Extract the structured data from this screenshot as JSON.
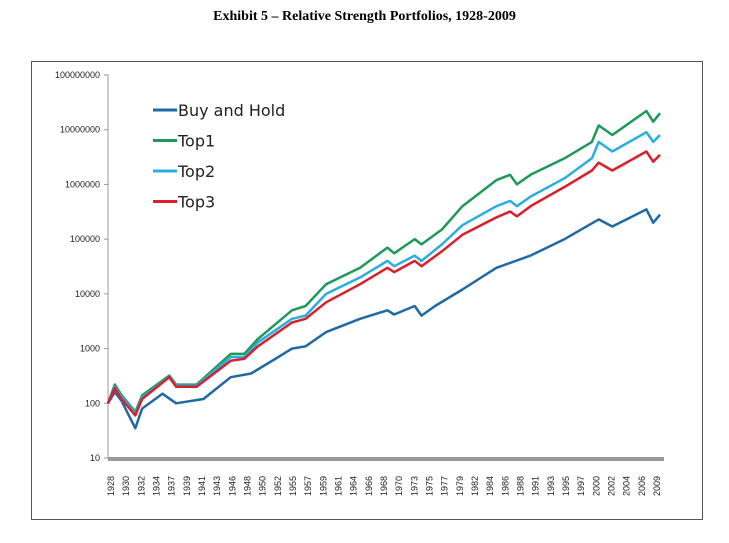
{
  "title": "Exhibit 5 – Relative Strength Portfolios, 1928-2009",
  "chart_data": {
    "type": "line",
    "title": "",
    "xlabel": "",
    "ylabel": "",
    "yscale": "log",
    "ylim": [
      10,
      100000000
    ],
    "y_ticks": [
      "10",
      "100",
      "1000",
      "10000",
      "100000",
      "1000000",
      "10000000",
      "100000000"
    ],
    "xlim": [
      1928,
      2009
    ],
    "x_ticks": [
      "1928",
      "1930",
      "1932",
      "1934",
      "1937",
      "1939",
      "1941",
      "1943",
      "1946",
      "1948",
      "1950",
      "1952",
      "1955",
      "1957",
      "1959",
      "1961",
      "1964",
      "1966",
      "1968",
      "1970",
      "1973",
      "1975",
      "1977",
      "1979",
      "1982",
      "1984",
      "1986",
      "1988",
      "1991",
      "1993",
      "1995",
      "1997",
      "2000",
      "2002",
      "2004",
      "2006",
      "2009"
    ],
    "grid": false,
    "legend": "top-left",
    "series": [
      {
        "name": "Buy and Hold",
        "color": "#1f6aa5",
        "points": [
          [
            1928,
            100
          ],
          [
            1929,
            160
          ],
          [
            1930,
            110
          ],
          [
            1932,
            35
          ],
          [
            1933,
            80
          ],
          [
            1936,
            150
          ],
          [
            1938,
            100
          ],
          [
            1942,
            120
          ],
          [
            1946,
            300
          ],
          [
            1949,
            350
          ],
          [
            1953,
            700
          ],
          [
            1955,
            1000
          ],
          [
            1957,
            1100
          ],
          [
            1960,
            2000
          ],
          [
            1965,
            3500
          ],
          [
            1969,
            5000
          ],
          [
            1970,
            4200
          ],
          [
            1973,
            6000
          ],
          [
            1974,
            4000
          ],
          [
            1976,
            6000
          ],
          [
            1980,
            12000
          ],
          [
            1985,
            30000
          ],
          [
            1990,
            50000
          ],
          [
            1995,
            100000
          ],
          [
            2000,
            230000
          ],
          [
            2002,
            170000
          ],
          [
            2007,
            350000
          ],
          [
            2008,
            200000
          ],
          [
            2009,
            280000
          ]
        ]
      },
      {
        "name": "Top1",
        "color": "#1e9a58",
        "points": [
          [
            1928,
            100
          ],
          [
            1929,
            220
          ],
          [
            1930,
            140
          ],
          [
            1932,
            70
          ],
          [
            1933,
            140
          ],
          [
            1937,
            320
          ],
          [
            1938,
            220
          ],
          [
            1941,
            220
          ],
          [
            1946,
            800
          ],
          [
            1948,
            800
          ],
          [
            1950,
            1500
          ],
          [
            1955,
            5000
          ],
          [
            1957,
            6000
          ],
          [
            1960,
            15000
          ],
          [
            1965,
            30000
          ],
          [
            1969,
            70000
          ],
          [
            1970,
            55000
          ],
          [
            1973,
            100000
          ],
          [
            1974,
            80000
          ],
          [
            1977,
            150000
          ],
          [
            1980,
            400000
          ],
          [
            1985,
            1200000
          ],
          [
            1987,
            1500000
          ],
          [
            1988,
            1000000
          ],
          [
            1990,
            1500000
          ],
          [
            1995,
            3000000
          ],
          [
            1999,
            6000000
          ],
          [
            2000,
            12000000
          ],
          [
            2002,
            8000000
          ],
          [
            2007,
            22000000
          ],
          [
            2008,
            14000000
          ],
          [
            2009,
            20000000
          ]
        ]
      },
      {
        "name": "Top2",
        "color": "#29aee0",
        "points": [
          [
            1928,
            100
          ],
          [
            1929,
            200
          ],
          [
            1930,
            130
          ],
          [
            1932,
            65
          ],
          [
            1933,
            130
          ],
          [
            1937,
            300
          ],
          [
            1938,
            210
          ],
          [
            1941,
            210
          ],
          [
            1946,
            700
          ],
          [
            1948,
            700
          ],
          [
            1950,
            1300
          ],
          [
            1955,
            3500
          ],
          [
            1957,
            4000
          ],
          [
            1960,
            10000
          ],
          [
            1965,
            20000
          ],
          [
            1969,
            40000
          ],
          [
            1970,
            32000
          ],
          [
            1973,
            50000
          ],
          [
            1974,
            40000
          ],
          [
            1977,
            80000
          ],
          [
            1980,
            180000
          ],
          [
            1985,
            400000
          ],
          [
            1987,
            500000
          ],
          [
            1988,
            400000
          ],
          [
            1990,
            600000
          ],
          [
            1995,
            1300000
          ],
          [
            1999,
            3000000
          ],
          [
            2000,
            6000000
          ],
          [
            2002,
            4000000
          ],
          [
            2007,
            9000000
          ],
          [
            2008,
            6000000
          ],
          [
            2009,
            8000000
          ]
        ]
      },
      {
        "name": "Top3",
        "color": "#d9202a",
        "points": [
          [
            1928,
            100
          ],
          [
            1929,
            190
          ],
          [
            1930,
            120
          ],
          [
            1932,
            60
          ],
          [
            1933,
            120
          ],
          [
            1937,
            300
          ],
          [
            1938,
            200
          ],
          [
            1941,
            200
          ],
          [
            1946,
            600
          ],
          [
            1948,
            650
          ],
          [
            1950,
            1100
          ],
          [
            1955,
            3000
          ],
          [
            1957,
            3500
          ],
          [
            1960,
            7000
          ],
          [
            1965,
            15000
          ],
          [
            1969,
            30000
          ],
          [
            1970,
            25000
          ],
          [
            1973,
            40000
          ],
          [
            1974,
            32000
          ],
          [
            1977,
            60000
          ],
          [
            1980,
            120000
          ],
          [
            1985,
            250000
          ],
          [
            1987,
            320000
          ],
          [
            1988,
            260000
          ],
          [
            1990,
            400000
          ],
          [
            1995,
            900000
          ],
          [
            1999,
            1800000
          ],
          [
            2000,
            2500000
          ],
          [
            2002,
            1800000
          ],
          [
            2007,
            4000000
          ],
          [
            2008,
            2600000
          ],
          [
            2009,
            3500000
          ]
        ]
      }
    ]
  }
}
